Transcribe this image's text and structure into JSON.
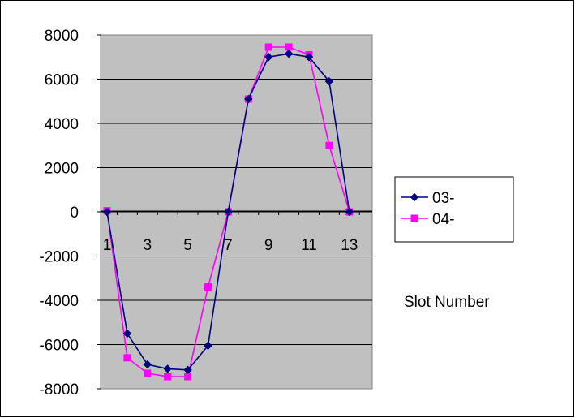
{
  "chart_data": {
    "type": "line",
    "title": "",
    "xlabel": "Slot Number",
    "ylabel": "",
    "x": [
      1,
      2,
      3,
      4,
      5,
      6,
      7,
      8,
      9,
      10,
      11,
      12,
      13
    ],
    "x_tick_labels": [
      "1",
      "3",
      "5",
      "7",
      "9",
      "11",
      "13"
    ],
    "x_tick_values": [
      1,
      3,
      5,
      7,
      9,
      11,
      13
    ],
    "y_tick_labels": [
      "8000",
      "6000",
      "4000",
      "2000",
      "0",
      "-2000",
      "-4000",
      "-6000",
      "-8000"
    ],
    "y_tick_values": [
      8000,
      6000,
      4000,
      2000,
      0,
      -2000,
      -4000,
      -6000,
      -8000
    ],
    "ylim": [
      -8000,
      8000
    ],
    "grid": true,
    "plot_background": "#c0c0c0",
    "legend_position": "right",
    "series": [
      {
        "name": "03-",
        "color": "#000080",
        "marker": "diamond",
        "values": [
          0,
          -5500,
          -6900,
          -7100,
          -7150,
          -6050,
          0,
          5100,
          7000,
          7150,
          7000,
          5900,
          0
        ]
      },
      {
        "name": "04-",
        "color": "#ff00ff",
        "marker": "square",
        "values": [
          50,
          -6600,
          -7300,
          -7450,
          -7450,
          -3400,
          0,
          5100,
          7450,
          7450,
          7100,
          3000,
          0
        ]
      }
    ]
  }
}
